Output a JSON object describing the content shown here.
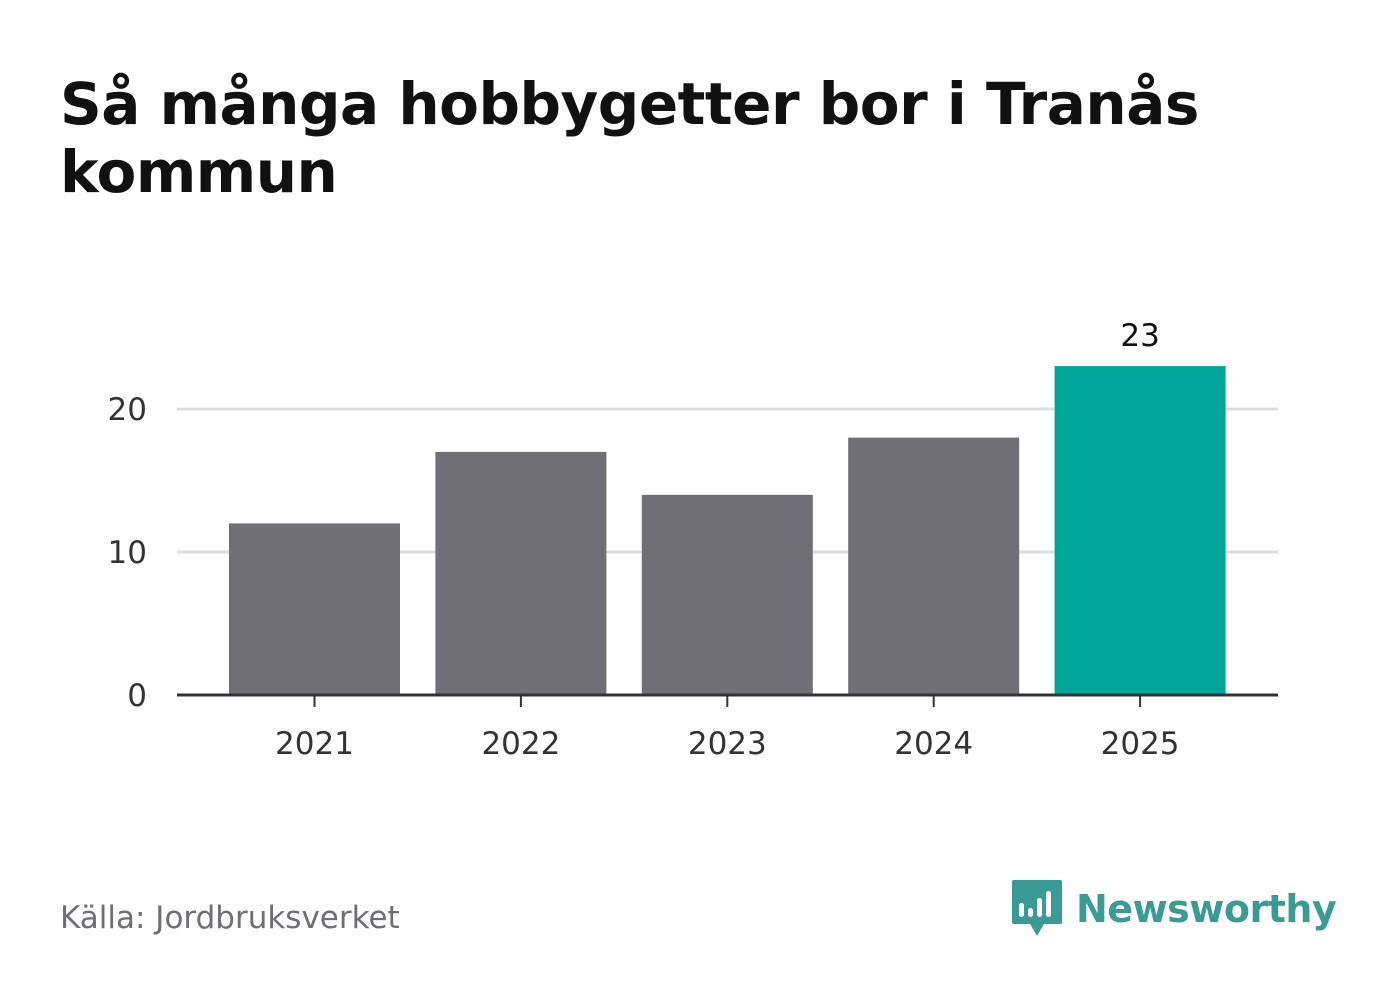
{
  "header": {
    "title": "Så många hobbygetter bor i Tranås kommun"
  },
  "footer": {
    "source": "Källa: Jordbruksverket",
    "brand": "Newsworthy"
  },
  "colors": {
    "bar_default": "#706f75",
    "bar_highlight": "#00a69a",
    "grid": "#dcdcdc",
    "axis": "#333333",
    "brand": "#3a9b94"
  },
  "chart_data": {
    "type": "bar",
    "title": "Så många hobbygetter bor i Tranås kommun",
    "xlabel": "",
    "ylabel": "",
    "categories": [
      "2021",
      "2022",
      "2023",
      "2024",
      "2025"
    ],
    "values": [
      12,
      17,
      14,
      18,
      23
    ],
    "ylim": [
      0,
      25
    ],
    "yticks": [
      0,
      10,
      20
    ],
    "grid": true,
    "highlight_index": 4,
    "data_labels": [
      {
        "index": 4,
        "text": "23"
      }
    ]
  }
}
